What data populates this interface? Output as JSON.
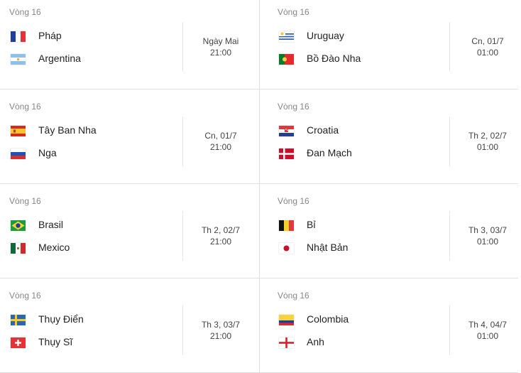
{
  "matches": [
    {
      "round": "Vòng 16",
      "team1": {
        "name": "Pháp",
        "flag": "france-flag-icon"
      },
      "team2": {
        "name": "Argentina",
        "flag": "argentina-flag-icon"
      },
      "date": "Ngày Mai",
      "time": "21:00"
    },
    {
      "round": "Vòng 16",
      "team1": {
        "name": "Uruguay",
        "flag": "uruguay-flag-icon"
      },
      "team2": {
        "name": "Bồ Đào Nha",
        "flag": "portugal-flag-icon"
      },
      "date": "Cn, 01/7",
      "time": "01:00"
    },
    {
      "round": "Vòng 16",
      "team1": {
        "name": "Tây Ban Nha",
        "flag": "spain-flag-icon"
      },
      "team2": {
        "name": "Nga",
        "flag": "russia-flag-icon"
      },
      "date": "Cn, 01/7",
      "time": "21:00"
    },
    {
      "round": "Vòng 16",
      "team1": {
        "name": "Croatia",
        "flag": "croatia-flag-icon"
      },
      "team2": {
        "name": "Đan Mạch",
        "flag": "denmark-flag-icon"
      },
      "date": "Th 2, 02/7",
      "time": "01:00"
    },
    {
      "round": "Vòng 16",
      "team1": {
        "name": "Brasil",
        "flag": "brazil-flag-icon"
      },
      "team2": {
        "name": "Mexico",
        "flag": "mexico-flag-icon"
      },
      "date": "Th 2, 02/7",
      "time": "21:00"
    },
    {
      "round": "Vòng 16",
      "team1": {
        "name": "Bỉ",
        "flag": "belgium-flag-icon"
      },
      "team2": {
        "name": "Nhật Bản",
        "flag": "japan-flag-icon"
      },
      "date": "Th 3, 03/7",
      "time": "01:00"
    },
    {
      "round": "Vòng 16",
      "team1": {
        "name": "Thụy Điển",
        "flag": "sweden-flag-icon"
      },
      "team2": {
        "name": "Thụy Sĩ",
        "flag": "switzerland-flag-icon"
      },
      "date": "Th 3, 03/7",
      "time": "21:00"
    },
    {
      "round": "Vòng 16",
      "team1": {
        "name": "Colombia",
        "flag": "colombia-flag-icon"
      },
      "team2": {
        "name": "Anh",
        "flag": "england-flag-icon"
      },
      "date": "Th 4, 04/7",
      "time": "01:00"
    }
  ]
}
